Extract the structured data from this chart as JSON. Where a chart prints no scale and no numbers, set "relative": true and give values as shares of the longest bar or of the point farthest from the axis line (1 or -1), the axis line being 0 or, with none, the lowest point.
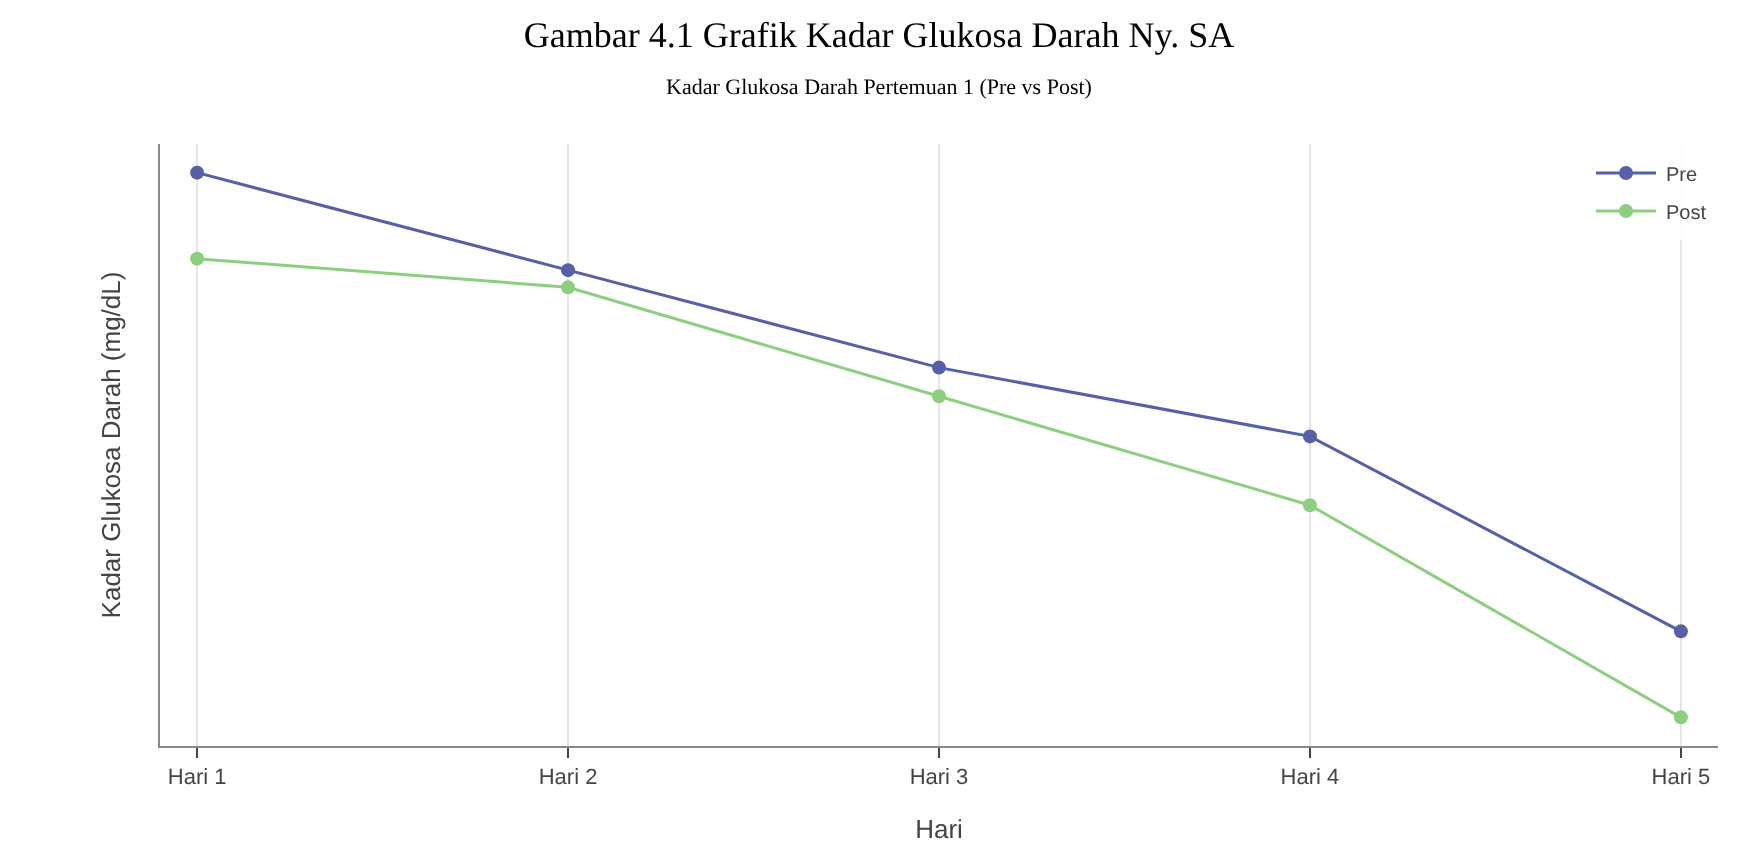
{
  "chart_data": {
    "type": "line",
    "title": "Gambar 4.1 Grafik Kadar Glukosa Darah Ny. SA",
    "subtitle": "Kadar Glukosa Darah Pertemuan 1 (Pre vs Post)",
    "xlabel": "Hari",
    "ylabel": "Kadar Glukosa Darah (mg/dL)",
    "relative": true,
    "categories": [
      "Hari 1",
      "Hari 2",
      "Hari 3",
      "Hari 4",
      "Hari 5"
    ],
    "series": [
      {
        "name": "Pre",
        "color": "#5560a8",
        "values": [
          1.0,
          0.83,
          0.66,
          0.54,
          0.2
        ]
      },
      {
        "name": "Post",
        "color": "#8ccf7e",
        "values": [
          0.85,
          0.8,
          0.61,
          0.42,
          0.05
        ]
      }
    ],
    "marker": "circle",
    "line_style": "solid",
    "grid": true,
    "legend": "top right"
  }
}
